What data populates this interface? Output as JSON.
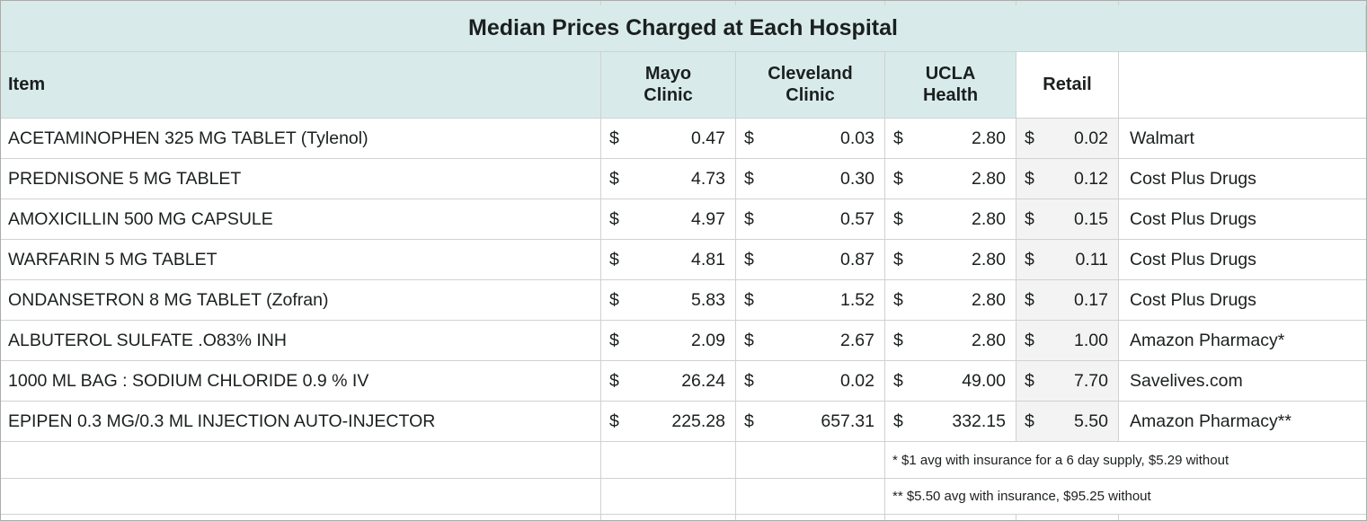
{
  "title": "Median Prices Charged at Each Hospital",
  "currency_symbol": "$",
  "columns": {
    "item": "Item",
    "mayo": "Mayo\nClinic",
    "cleveland": "Cleveland\nClinic",
    "ucla": "UCLA\nHealth",
    "retail": "Retail"
  },
  "rows": [
    {
      "item": "ACETAMINOPHEN 325 MG TABLET (Tylenol)",
      "mayo": "0.47",
      "cleveland": "0.03",
      "ucla": "2.80",
      "retail": "0.02",
      "source": "Walmart"
    },
    {
      "item": "PREDNISONE 5 MG TABLET",
      "mayo": "4.73",
      "cleveland": "0.30",
      "ucla": "2.80",
      "retail": "0.12",
      "source": "Cost Plus Drugs"
    },
    {
      "item": "AMOXICILLIN 500 MG CAPSULE",
      "mayo": "4.97",
      "cleveland": "0.57",
      "ucla": "2.80",
      "retail": "0.15",
      "source": "Cost Plus Drugs"
    },
    {
      "item": "WARFARIN 5 MG TABLET",
      "mayo": "4.81",
      "cleveland": "0.87",
      "ucla": "2.80",
      "retail": "0.11",
      "source": "Cost Plus Drugs"
    },
    {
      "item": "ONDANSETRON 8 MG TABLET (Zofran)",
      "mayo": "5.83",
      "cleveland": "1.52",
      "ucla": "2.80",
      "retail": "0.17",
      "source": "Cost Plus Drugs"
    },
    {
      "item": "ALBUTEROL SULFATE .O83% INH",
      "mayo": "2.09",
      "cleveland": "2.67",
      "ucla": "2.80",
      "retail": "1.00",
      "source": "Amazon Pharmacy*"
    },
    {
      "item": "1000 ML BAG : SODIUM CHLORIDE 0.9 % IV",
      "mayo": "26.24",
      "cleveland": "0.02",
      "ucla": "49.00",
      "retail": "7.70",
      "source": "Savelives.com"
    },
    {
      "item": "EPIPEN 0.3 MG/0.3 ML INJECTION AUTO-INJECTOR",
      "mayo": "225.28",
      "cleveland": "657.31",
      "ucla": "332.15",
      "retail": "5.50",
      "source": "Amazon Pharmacy**"
    }
  ],
  "footnotes": [
    "* $1 avg with insurance for a 6 day supply, $5.29 without",
    "** $5.50 avg with insurance, $95.25 without"
  ],
  "colors": {
    "header_bg": "#d8ebea",
    "retail_column_bg": "#f3f3f3",
    "grid_line": "#cfd2d1",
    "text": "#1b1f20"
  },
  "chart_data": {
    "type": "table",
    "title": "Median Prices Charged at Each Hospital",
    "columns": [
      "Item",
      "Mayo Clinic",
      "Cleveland Clinic",
      "UCLA Health",
      "Retail",
      ""
    ],
    "rows": [
      [
        "ACETAMINOPHEN 325 MG TABLET (Tylenol)",
        0.47,
        0.03,
        2.8,
        0.02,
        "Walmart"
      ],
      [
        "PREDNISONE 5 MG TABLET",
        4.73,
        0.3,
        2.8,
        0.12,
        "Cost Plus Drugs"
      ],
      [
        "AMOXICILLIN 500 MG CAPSULE",
        4.97,
        0.57,
        2.8,
        0.15,
        "Cost Plus Drugs"
      ],
      [
        "WARFARIN 5 MG TABLET",
        4.81,
        0.87,
        2.8,
        0.11,
        "Cost Plus Drugs"
      ],
      [
        "ONDANSETRON 8 MG TABLET (Zofran)",
        5.83,
        1.52,
        2.8,
        0.17,
        "Cost Plus Drugs"
      ],
      [
        "ALBUTEROL SULFATE .O83% INH",
        2.09,
        2.67,
        2.8,
        1.0,
        "Amazon Pharmacy*"
      ],
      [
        "1000 ML BAG : SODIUM CHLORIDE 0.9 % IV",
        26.24,
        0.02,
        49.0,
        7.7,
        "Savelives.com"
      ],
      [
        "EPIPEN 0.3 MG/0.3 ML INJECTION AUTO-INJECTOR",
        225.28,
        657.31,
        332.15,
        5.5,
        "Amazon Pharmacy**"
      ]
    ],
    "footnotes": [
      "* $1 avg with insurance for a 6 day supply, $5.29 without",
      "** $5.50 avg with insurance, $95.25 without"
    ],
    "units": "USD"
  }
}
